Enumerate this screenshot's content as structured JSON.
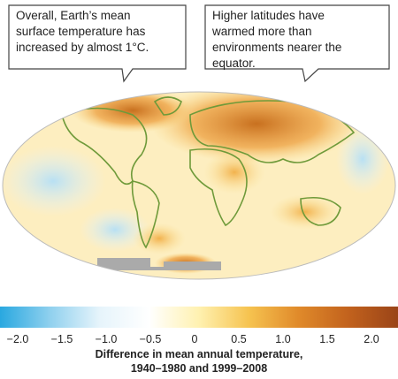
{
  "callouts": [
    "Overall, Earth’s mean surface temperature has increased by almost 1°C.",
    "Higher latitudes have warmed more than environments nearer the equator."
  ],
  "colorbar": {
    "range": [
      -2.2,
      2.3
    ],
    "colors": [
      "#29a8e0",
      "#8fd0ee",
      "#e6f4fb",
      "#ffffff",
      "#fff1b0",
      "#f6c350",
      "#e08a2a",
      "#c2621d",
      "#9a4418"
    ],
    "ticks": [
      {
        "value": -2,
        "label": "−2.0"
      },
      {
        "value": -1.5,
        "label": "−1.5"
      },
      {
        "value": -1,
        "label": "−1.0"
      },
      {
        "value": -0.5,
        "label": "−0.5"
      },
      0,
      0.5,
      {
        "value": 1,
        "label": "1.0"
      },
      1.5,
      {
        "value": 2,
        "label": "2.0"
      }
    ]
  },
  "caption": [
    "Difference in mean annual temperature,",
    "1940–1980 and 1999–2008"
  ]
}
